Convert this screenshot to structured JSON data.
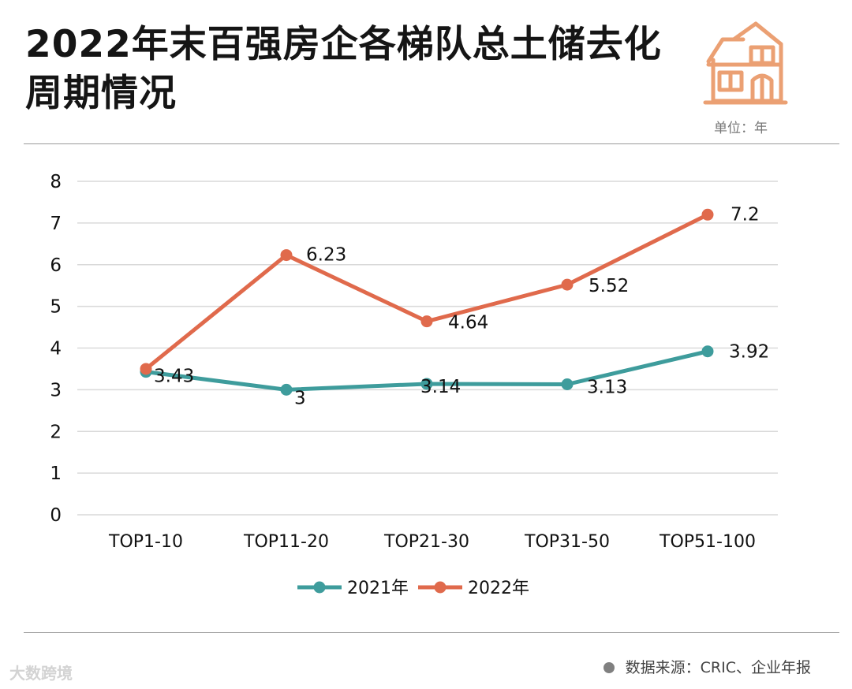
{
  "title": "2022年末百强房企各梯队总土储去化周期情况",
  "unit_label": "单位：年",
  "source_label": "数据来源：CRIC、企业年报",
  "watermark": "大数跨境",
  "icons": {
    "house": "house-icon"
  },
  "colors": {
    "series_2021": "#3e9c9c",
    "series_2022": "#e06a4c",
    "icon": "#eba073",
    "grid": "#d9d9d9",
    "rule": "#9a9a9a"
  },
  "chart_data": {
    "type": "line",
    "categories": [
      "TOP1-10",
      "TOP11-20",
      "TOP21-30",
      "TOP31-50",
      "TOP51-100"
    ],
    "series": [
      {
        "name": "2021年",
        "values": [
          3.43,
          3,
          3.14,
          3.13,
          3.92
        ],
        "labels": [
          "3.43",
          "3",
          "3.14",
          "3.13",
          "3.92"
        ],
        "color": "#3e9c9c"
      },
      {
        "name": "2022年",
        "values": [
          3.5,
          6.23,
          4.64,
          5.52,
          7.2
        ],
        "labels": [
          "",
          "6.23",
          "4.64",
          "5.52",
          "7.2"
        ],
        "color": "#e06a4c"
      }
    ],
    "ylim": [
      0,
      8
    ],
    "yticks": [
      0,
      1,
      2,
      3,
      4,
      5,
      6,
      7,
      8
    ],
    "grid": true,
    "legend": "bottom-center"
  }
}
